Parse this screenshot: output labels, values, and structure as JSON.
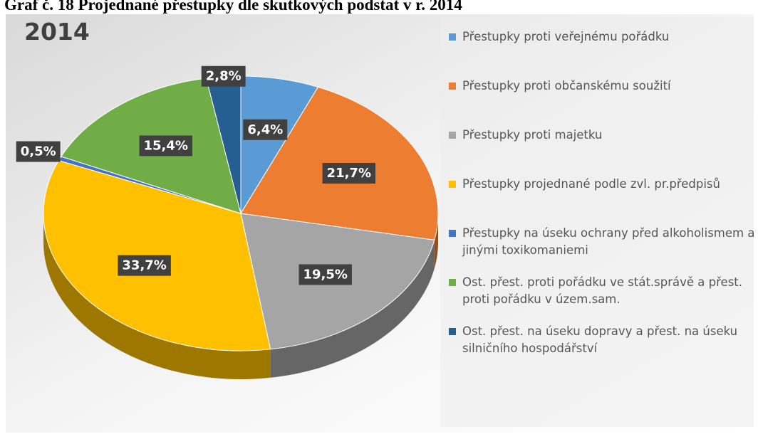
{
  "chart_data": {
    "type": "pie",
    "caption": "Graf č. 18 Projednané přestupky dle skutkových podstat v r. 2014",
    "title": "2014",
    "categories": [
      "Přestupky proti veřejnému pořádku",
      "Přestupky proti občanskému soužití",
      "Přestupky proti majetku",
      "Přestupky projednané podle zvl. pr.předpisů",
      "Přestupky na úseku ochrany před alkoholismem a jinými toxikomaniemi",
      "Ost. přest. proti pořádku ve stát.správě a přest. proti pořádku v územ.sam.",
      "Ost. přest. na úseku dopravy a přest. na úseku silničního hospodářství"
    ],
    "values": [
      6.4,
      21.7,
      19.5,
      33.7,
      0.5,
      15.4,
      2.8
    ],
    "value_labels": [
      "6,4%",
      "21,7%",
      "19,5%",
      "33,7%",
      "0,5%",
      "15,4%",
      "2,8%"
    ],
    "colors": [
      "#5b9bd5",
      "#ed7d31",
      "#a5a5a5",
      "#ffc000",
      "#4472c4",
      "#70ad47",
      "#255e91"
    ],
    "legend": "right"
  }
}
